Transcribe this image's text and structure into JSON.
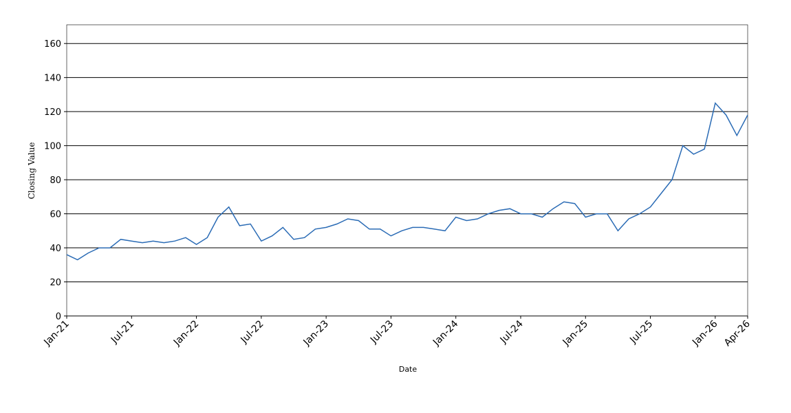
{
  "chart_data": {
    "type": "line",
    "x_label": "Date",
    "y_label": "Closing Value",
    "x": [
      "2021-01",
      "2021-02",
      "2021-03",
      "2021-04",
      "2021-05",
      "2021-06",
      "2021-07",
      "2021-08",
      "2021-09",
      "2021-10",
      "2021-11",
      "2021-12",
      "2022-01",
      "2022-02",
      "2022-03",
      "2022-04",
      "2022-05",
      "2022-06",
      "2022-07",
      "2022-08",
      "2022-09",
      "2022-10",
      "2022-11",
      "2022-12",
      "2023-01",
      "2023-02",
      "2023-03",
      "2023-04",
      "2023-05",
      "2023-06",
      "2023-07",
      "2023-08",
      "2023-09",
      "2023-10",
      "2023-11",
      "2023-12",
      "2024-01",
      "2024-02",
      "2024-03",
      "2024-04",
      "2024-05",
      "2024-06",
      "2024-07",
      "2024-08",
      "2024-09",
      "2024-10",
      "2024-11",
      "2024-12",
      "2025-01",
      "2025-02",
      "2025-03",
      "2025-04",
      "2025-05",
      "2025-06",
      "2025-07",
      "2025-08",
      "2025-09",
      "2025-10",
      "2025-11",
      "2025-12",
      "2026-01",
      "2026-02",
      "2026-03",
      "2026-04"
    ],
    "series": [
      {
        "name": "Closing Value",
        "color": "#2a6bb5",
        "values": [
          36,
          33,
          37,
          40,
          40,
          45,
          44,
          43,
          44,
          43,
          44,
          46,
          42,
          46,
          58,
          64,
          53,
          54,
          44,
          47,
          52,
          45,
          46,
          51,
          52,
          54,
          57,
          56,
          51,
          51,
          47,
          50,
          52,
          52,
          51,
          50,
          58,
          56,
          57,
          60,
          62,
          63,
          60,
          60,
          58,
          63,
          67,
          66,
          58,
          60,
          60,
          50,
          57,
          60,
          64,
          72,
          80,
          100,
          95,
          98,
          125,
          118,
          106,
          118
        ]
      }
    ],
    "xlim": [
      "2021-01",
      "2026-04"
    ],
    "xticks": [
      {
        "value": "2021-01",
        "label": "Jan-21"
      },
      {
        "value": "2021-07",
        "label": "Jul-21"
      },
      {
        "value": "2022-01",
        "label": "Jan-22"
      },
      {
        "value": "2022-07",
        "label": "Jul-22"
      },
      {
        "value": "2023-01",
        "label": "Jan-23"
      },
      {
        "value": "2023-07",
        "label": "Jul-23"
      },
      {
        "value": "2024-01",
        "label": "Jan-24"
      },
      {
        "value": "2024-07",
        "label": "Jul-24"
      },
      {
        "value": "2025-01",
        "label": "Jan-25"
      },
      {
        "value": "2025-07",
        "label": "Jul-25"
      },
      {
        "value": "2026-01",
        "label": "Jan-26"
      },
      {
        "value": "2026-04",
        "label": "Apr-26"
      }
    ],
    "ylim": [
      0,
      171
    ],
    "yticks": [
      0,
      20,
      40,
      60,
      80,
      100,
      120,
      140,
      160
    ],
    "grid": true
  }
}
